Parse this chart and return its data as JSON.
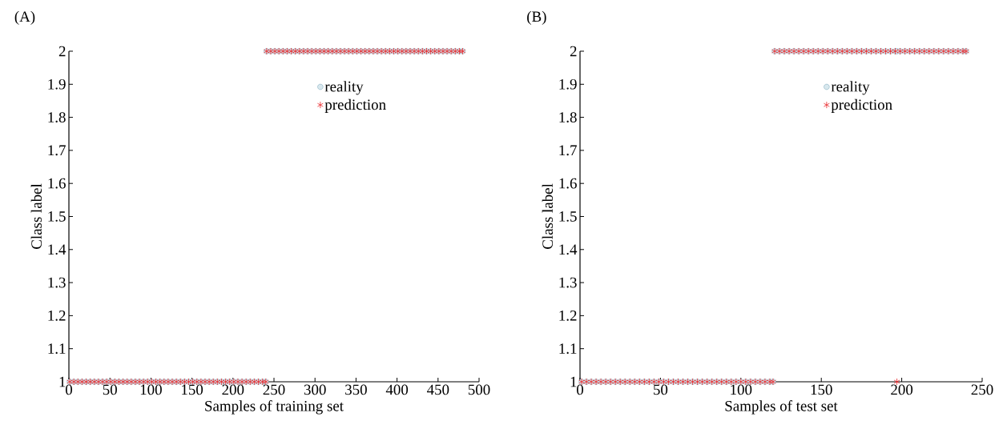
{
  "chart_data": [
    {
      "type": "scatter",
      "title": "(A)",
      "xlabel": "Samples of training set",
      "ylabel": "Class label",
      "x": [
        1,
        6,
        11,
        16,
        21,
        26,
        31,
        36,
        41,
        46,
        51,
        56,
        61,
        66,
        71,
        76,
        81,
        86,
        91,
        96,
        101,
        106,
        111,
        116,
        121,
        126,
        131,
        136,
        141,
        146,
        151,
        156,
        161,
        166,
        171,
        176,
        181,
        186,
        191,
        196,
        201,
        206,
        211,
        216,
        221,
        226,
        231,
        236,
        240,
        241,
        246,
        251,
        256,
        261,
        266,
        271,
        276,
        281,
        286,
        291,
        296,
        301,
        306,
        311,
        316,
        321,
        326,
        331,
        336,
        341,
        346,
        351,
        356,
        361,
        366,
        371,
        376,
        381,
        386,
        391,
        396,
        401,
        406,
        411,
        416,
        421,
        426,
        431,
        436,
        441,
        446,
        451,
        456,
        461,
        466,
        471,
        476,
        480
      ],
      "series": [
        {
          "name": "reality",
          "color": "#5b8fa8",
          "marker": "circle",
          "values": [
            1,
            1,
            1,
            1,
            1,
            1,
            1,
            1,
            1,
            1,
            1,
            1,
            1,
            1,
            1,
            1,
            1,
            1,
            1,
            1,
            1,
            1,
            1,
            1,
            1,
            1,
            1,
            1,
            1,
            1,
            1,
            1,
            1,
            1,
            1,
            1,
            1,
            1,
            1,
            1,
            1,
            1,
            1,
            1,
            1,
            1,
            1,
            1,
            1,
            2,
            2,
            2,
            2,
            2,
            2,
            2,
            2,
            2,
            2,
            2,
            2,
            2,
            2,
            2,
            2,
            2,
            2,
            2,
            2,
            2,
            2,
            2,
            2,
            2,
            2,
            2,
            2,
            2,
            2,
            2,
            2,
            2,
            2,
            2,
            2,
            2,
            2,
            2,
            2,
            2,
            2,
            2,
            2,
            2,
            2,
            2,
            2,
            2
          ]
        },
        {
          "name": "prediction",
          "color": "#e8262a",
          "marker": "cross",
          "values": [
            1,
            1,
            1,
            1,
            1,
            1,
            1,
            1,
            1,
            1,
            1,
            1,
            1,
            1,
            1,
            1,
            1,
            1,
            1,
            1,
            1,
            1,
            1,
            1,
            1,
            1,
            1,
            1,
            1,
            1,
            1,
            1,
            1,
            1,
            1,
            1,
            1,
            1,
            1,
            1,
            1,
            1,
            1,
            1,
            1,
            1,
            1,
            1,
            1,
            2,
            2,
            2,
            2,
            2,
            2,
            2,
            2,
            2,
            2,
            2,
            2,
            2,
            2,
            2,
            2,
            2,
            2,
            2,
            2,
            2,
            2,
            2,
            2,
            2,
            2,
            2,
            2,
            2,
            2,
            2,
            2,
            2,
            2,
            2,
            2,
            2,
            2,
            2,
            2,
            2,
            2,
            2,
            2,
            2,
            2,
            2,
            2,
            2
          ]
        }
      ],
      "xlim": [
        0,
        500
      ],
      "ylim": [
        1,
        2
      ],
      "xticks": [
        0,
        50,
        100,
        150,
        200,
        250,
        300,
        350,
        400,
        450,
        500
      ],
      "yticks": [
        1,
        1.1,
        1.2,
        1.3,
        1.4,
        1.5,
        1.6,
        1.7,
        1.8,
        1.9,
        2
      ],
      "legend": "top right"
    },
    {
      "type": "scatter",
      "title": "(B)",
      "xlabel": "Samples of test set",
      "ylabel": "Class label",
      "x": [
        1,
        4,
        7,
        10,
        13,
        16,
        19,
        22,
        25,
        28,
        31,
        34,
        37,
        40,
        43,
        46,
        49,
        52,
        55,
        58,
        61,
        64,
        67,
        70,
        73,
        76,
        79,
        82,
        85,
        88,
        91,
        94,
        97,
        100,
        103,
        106,
        109,
        112,
        115,
        118,
        120,
        121,
        124,
        127,
        130,
        133,
        136,
        139,
        142,
        145,
        148,
        151,
        154,
        157,
        160,
        163,
        166,
        169,
        172,
        175,
        178,
        181,
        184,
        187,
        190,
        193,
        196,
        197,
        199,
        202,
        205,
        208,
        211,
        214,
        217,
        220,
        223,
        226,
        229,
        232,
        235,
        238,
        240
      ],
      "series": [
        {
          "name": "reality",
          "color": "#5b8fa8",
          "marker": "circle",
          "values": [
            1,
            1,
            1,
            1,
            1,
            1,
            1,
            1,
            1,
            1,
            1,
            1,
            1,
            1,
            1,
            1,
            1,
            1,
            1,
            1,
            1,
            1,
            1,
            1,
            1,
            1,
            1,
            1,
            1,
            1,
            1,
            1,
            1,
            1,
            1,
            1,
            1,
            1,
            1,
            1,
            1,
            2,
            2,
            2,
            2,
            2,
            2,
            2,
            2,
            2,
            2,
            2,
            2,
            2,
            2,
            2,
            2,
            2,
            2,
            2,
            2,
            2,
            2,
            2,
            2,
            2,
            2,
            2,
            2,
            2,
            2,
            2,
            2,
            2,
            2,
            2,
            2,
            2,
            2,
            2,
            2,
            2,
            2
          ]
        },
        {
          "name": "prediction",
          "color": "#e8262a",
          "marker": "cross",
          "values": [
            1,
            1,
            1,
            1,
            1,
            1,
            1,
            1,
            1,
            1,
            1,
            1,
            1,
            1,
            1,
            1,
            1,
            1,
            1,
            1,
            1,
            1,
            1,
            1,
            1,
            1,
            1,
            1,
            1,
            1,
            1,
            1,
            1,
            1,
            1,
            1,
            1,
            1,
            1,
            1,
            1,
            2,
            2,
            2,
            2,
            2,
            2,
            2,
            2,
            2,
            2,
            2,
            2,
            2,
            2,
            2,
            2,
            2,
            2,
            2,
            2,
            2,
            2,
            2,
            2,
            2,
            2,
            1,
            2,
            2,
            2,
            2,
            2,
            2,
            2,
            2,
            2,
            2,
            2,
            2,
            2,
            2,
            2
          ]
        }
      ],
      "xlim": [
        0,
        250
      ],
      "ylim": [
        1,
        2
      ],
      "xticks": [
        0,
        50,
        100,
        150,
        200,
        250
      ],
      "yticks": [
        1,
        1.1,
        1.2,
        1.3,
        1.4,
        1.5,
        1.6,
        1.7,
        1.8,
        1.9,
        2
      ],
      "legend": "top right"
    }
  ]
}
